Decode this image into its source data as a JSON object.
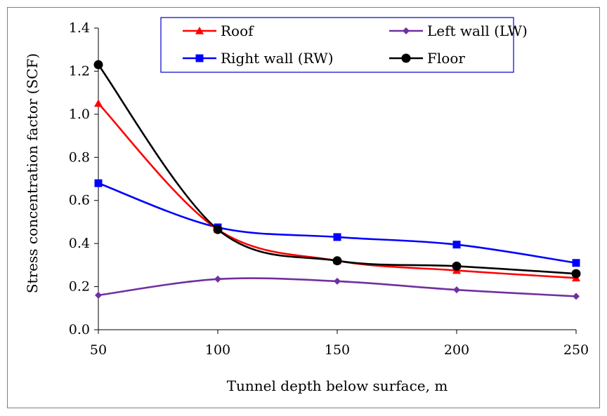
{
  "chart_data": {
    "type": "line",
    "title": "",
    "xlabel": "Tunnel depth below surface, m",
    "ylabel": "Stress concentration factor (SCF)",
    "x": [
      50,
      100,
      150,
      200,
      250
    ],
    "xlim": [
      50,
      250
    ],
    "ylim": [
      0,
      1.4
    ],
    "xticks": [
      "50",
      "100",
      "150",
      "200",
      "250"
    ],
    "yticks": [
      "0.0",
      "0.2",
      "0.4",
      "0.6",
      "0.8",
      "1.0",
      "1.2",
      "1.4"
    ],
    "grid": false,
    "legend_position": "top",
    "series": [
      {
        "name": "Roof",
        "values": [
          1.05,
          0.465,
          0.32,
          0.275,
          0.24
        ],
        "color": "#ff0000",
        "marker": "triangle"
      },
      {
        "name": "Left wall (LW)",
        "values": [
          0.16,
          0.235,
          0.225,
          0.185,
          0.155
        ],
        "color": "#7030a0",
        "marker": "diamond"
      },
      {
        "name": "Right wall (RW)",
        "values": [
          0.68,
          0.475,
          0.43,
          0.395,
          0.31
        ],
        "color": "#0000ff",
        "marker": "square"
      },
      {
        "name": "Floor",
        "values": [
          1.23,
          0.465,
          0.32,
          0.295,
          0.26
        ],
        "color": "#000000",
        "marker": "circle"
      }
    ]
  }
}
